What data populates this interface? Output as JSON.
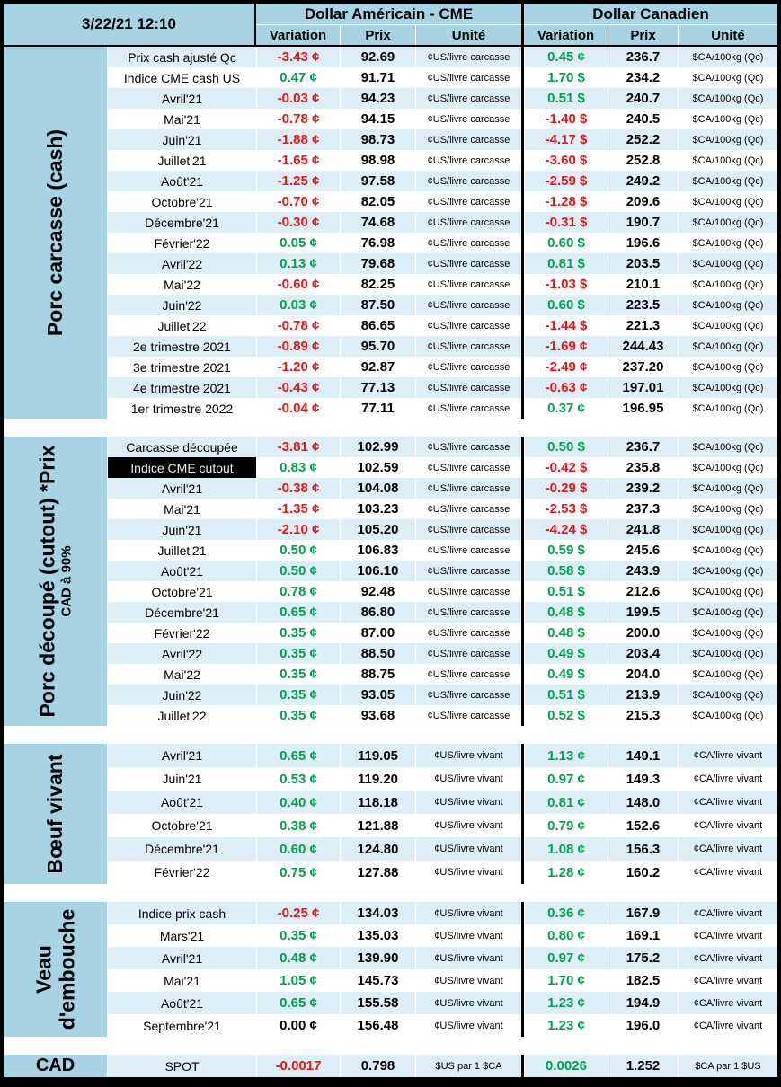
{
  "colors": {
    "negative": "#ec1313",
    "positive": "#00a14e",
    "zero": "#000000",
    "panel_blue": "#a7d3e4",
    "row_tint": "#ddeef6",
    "highlight_bg": "#000000",
    "highlight_text": "#ededed"
  },
  "header": {
    "timestamp": "3/22/21 12:10",
    "usd_title": "Dollar Américain - CME",
    "cad_title": "Dollar Canadien",
    "variation_label": "Variation",
    "prix_label": "Prix",
    "unite_label": "Unité"
  },
  "sections": [
    {
      "key": "porc-carcasse-cash",
      "label": "Porc carcasse (cash)",
      "sublabel": "",
      "usd_unit": "¢US/livre carcasse",
      "cad_unit": "$CA/100kg (Qc)",
      "rows": [
        {
          "label": "Prix cash ajusté Qc",
          "usd_var": "-3.43 ¢",
          "usd_prix": "92.69",
          "cad_var": "0.45 ¢",
          "cad_prix": "236.7"
        },
        {
          "label": "Indice CME cash US",
          "usd_var": "0.47 ¢",
          "usd_prix": "91.71",
          "cad_var": "1.70 $",
          "cad_prix": "234.2"
        },
        {
          "label": "Avril'21",
          "usd_var": "-0.03 ¢",
          "usd_prix": "94.23",
          "cad_var": "0.51 $",
          "cad_prix": "240.7"
        },
        {
          "label": "Mai'21",
          "usd_var": "-0.78 ¢",
          "usd_prix": "94.15",
          "cad_var": "-1.40 $",
          "cad_prix": "240.5"
        },
        {
          "label": "Juin'21",
          "usd_var": "-1.88 ¢",
          "usd_prix": "98.73",
          "cad_var": "-4.17 $",
          "cad_prix": "252.2"
        },
        {
          "label": "Juillet'21",
          "usd_var": "-1.65 ¢",
          "usd_prix": "98.98",
          "cad_var": "-3.60 $",
          "cad_prix": "252.8"
        },
        {
          "label": "Août'21",
          "usd_var": "-1.25 ¢",
          "usd_prix": "97.58",
          "cad_var": "-2.59 $",
          "cad_prix": "249.2"
        },
        {
          "label": "Octobre'21",
          "usd_var": "-0.70 ¢",
          "usd_prix": "82.05",
          "cad_var": "-1.28 $",
          "cad_prix": "209.6"
        },
        {
          "label": "Décembre'21",
          "usd_var": "-0.30 ¢",
          "usd_prix": "74.68",
          "cad_var": "-0.31 $",
          "cad_prix": "190.7"
        },
        {
          "label": "Février'22",
          "usd_var": "0.05 ¢",
          "usd_prix": "76.98",
          "cad_var": "0.60 $",
          "cad_prix": "196.6"
        },
        {
          "label": "Avril'22",
          "usd_var": "0.13 ¢",
          "usd_prix": "79.68",
          "cad_var": "0.81 $",
          "cad_prix": "203.5"
        },
        {
          "label": "Mai'22",
          "usd_var": "-0.60 ¢",
          "usd_prix": "82.25",
          "cad_var": "-1.03 $",
          "cad_prix": "210.1"
        },
        {
          "label": "Juin'22",
          "usd_var": "0.03 ¢",
          "usd_prix": "87.50",
          "cad_var": "0.60 $",
          "cad_prix": "223.5"
        },
        {
          "label": "Juillet'22",
          "usd_var": "-0.78 ¢",
          "usd_prix": "86.65",
          "cad_var": "-1.44 $",
          "cad_prix": "221.3"
        },
        {
          "label": "2e trimestre 2021",
          "usd_var": "-0.89 ¢",
          "usd_prix": "95.70",
          "cad_var": "-1.69 ¢",
          "cad_prix": "244.43"
        },
        {
          "label": "3e trimestre 2021",
          "usd_var": "-1.20 ¢",
          "usd_prix": "92.87",
          "cad_var": "-2.49 ¢",
          "cad_prix": "237.20"
        },
        {
          "label": "4e trimestre 2021",
          "usd_var": "-0.43 ¢",
          "usd_prix": "77.13",
          "cad_var": "-0.63 ¢",
          "cad_prix": "197.01"
        },
        {
          "label": "1er trimestre 2022",
          "usd_var": "-0.04 ¢",
          "usd_prix": "77.11",
          "cad_var": "0.37 ¢",
          "cad_prix": "196.95"
        }
      ]
    },
    {
      "key": "porc-decoupe-cutout",
      "label": "Porc découpé (cutout) *Prix",
      "sublabel": "CAD à 90%",
      "usd_unit": "¢US/livre carcasse",
      "cad_unit": "$CA/100kg (Qc)",
      "rows": [
        {
          "label": "Carcasse découpée",
          "usd_var": "-3.81 ¢",
          "usd_prix": "102.99",
          "cad_var": "0.50 $",
          "cad_prix": "236.7"
        },
        {
          "label": "Indice CME cutout",
          "highlight": true,
          "usd_var": "0.83 ¢",
          "usd_prix": "102.59",
          "cad_var": "-0.42 $",
          "cad_prix": "235.8"
        },
        {
          "label": "Avril'21",
          "usd_var": "-0.38 ¢",
          "usd_prix": "104.08",
          "cad_var": "-0.29 $",
          "cad_prix": "239.2"
        },
        {
          "label": "Mai'21",
          "usd_var": "-1.35 ¢",
          "usd_prix": "103.23",
          "cad_var": "-2.53 $",
          "cad_prix": "237.3"
        },
        {
          "label": "Juin'21",
          "usd_var": "-2.10 ¢",
          "usd_prix": "105.20",
          "cad_var": "-4.24 $",
          "cad_prix": "241.8"
        },
        {
          "label": "Juillet'21",
          "usd_var": "0.50 ¢",
          "usd_prix": "106.83",
          "cad_var": "0.59 $",
          "cad_prix": "245.6"
        },
        {
          "label": "Août'21",
          "usd_var": "0.50 ¢",
          "usd_prix": "106.10",
          "cad_var": "0.58 $",
          "cad_prix": "243.9"
        },
        {
          "label": "Octobre'21",
          "usd_var": "0.78 ¢",
          "usd_prix": "92.48",
          "cad_var": "0.51 $",
          "cad_prix": "212.6"
        },
        {
          "label": "Décembre'21",
          "usd_var": "0.65 ¢",
          "usd_prix": "86.80",
          "cad_var": "0.48 $",
          "cad_prix": "199.5"
        },
        {
          "label": "Février'22",
          "usd_var": "0.35 ¢",
          "usd_prix": "87.00",
          "cad_var": "0.48 $",
          "cad_prix": "200.0"
        },
        {
          "label": "Avril'22",
          "usd_var": "0.35 ¢",
          "usd_prix": "88.50",
          "cad_var": "0.49 $",
          "cad_prix": "203.4"
        },
        {
          "label": "Mai'22",
          "usd_var": "0.35 ¢",
          "usd_prix": "88.75",
          "cad_var": "0.49 $",
          "cad_prix": "204.0"
        },
        {
          "label": "Juin'22",
          "usd_var": "0.35 ¢",
          "usd_prix": "93.05",
          "cad_var": "0.51 $",
          "cad_prix": "213.9"
        },
        {
          "label": "Juillet'22",
          "usd_var": "0.35 ¢",
          "usd_prix": "93.68",
          "cad_var": "0.52 $",
          "cad_prix": "215.3"
        }
      ]
    },
    {
      "key": "boeuf-vivant",
      "label": "Bœuf vivant",
      "sublabel": "",
      "usd_unit": "¢US/livre vivant",
      "cad_unit": "¢CA/livre vivant",
      "rows": [
        {
          "label": "Avril'21",
          "usd_var": "0.65 ¢",
          "usd_prix": "119.05",
          "cad_var": "1.13 ¢",
          "cad_prix": "149.1"
        },
        {
          "label": "Juin'21",
          "usd_var": "0.53 ¢",
          "usd_prix": "119.20",
          "cad_var": "0.97 ¢",
          "cad_prix": "149.3"
        },
        {
          "label": "Août'21",
          "usd_var": "0.40 ¢",
          "usd_prix": "118.18",
          "cad_var": "0.81 ¢",
          "cad_prix": "148.0"
        },
        {
          "label": "Octobre'21",
          "usd_var": "0.38 ¢",
          "usd_prix": "121.88",
          "cad_var": "0.79 ¢",
          "cad_prix": "152.6"
        },
        {
          "label": "Décembre'21",
          "usd_var": "0.60 ¢",
          "usd_prix": "124.80",
          "cad_var": "1.08 ¢",
          "cad_prix": "156.3"
        },
        {
          "label": "Février'22",
          "usd_var": "0.75 ¢",
          "usd_prix": "127.88",
          "cad_var": "1.28 ¢",
          "cad_prix": "160.2"
        }
      ]
    },
    {
      "key": "veau-embouche",
      "label": "Veau\nd'embouche",
      "sublabel": "",
      "usd_unit": "¢US/livre vivant",
      "cad_unit": "¢CA/livre vivant",
      "rows": [
        {
          "label": "Indice prix cash",
          "usd_var": "-0.25 ¢",
          "usd_prix": "134.03",
          "cad_var": "0.36 ¢",
          "cad_prix": "167.9"
        },
        {
          "label": "Mars'21",
          "usd_var": "0.35 ¢",
          "usd_prix": "135.03",
          "cad_var": "0.80 ¢",
          "cad_prix": "169.1"
        },
        {
          "label": "Avril'21",
          "usd_var": "0.48 ¢",
          "usd_prix": "139.90",
          "cad_var": "0.97 ¢",
          "cad_prix": "175.2"
        },
        {
          "label": "Mai'21",
          "usd_var": "1.05 ¢",
          "usd_prix": "145.73",
          "cad_var": "1.70 ¢",
          "cad_prix": "182.5"
        },
        {
          "label": "Août'21",
          "usd_var": "0.65 ¢",
          "usd_prix": "155.58",
          "cad_var": "1.23 ¢",
          "cad_prix": "194.9"
        },
        {
          "label": "Septembre'21",
          "usd_var": "0.00 ¢",
          "usd_prix": "156.48",
          "cad_var": "1.23 ¢",
          "cad_prix": "196.0"
        }
      ]
    }
  ],
  "footer": {
    "label": "CAD",
    "row_label": "SPOT",
    "usd_var": "-0.0017",
    "usd_prix": "0.798",
    "usd_unit": "$US par 1 $CA",
    "cad_var": "0.0026",
    "cad_prix": "1.252",
    "cad_unit": "$CA par 1 $US"
  }
}
